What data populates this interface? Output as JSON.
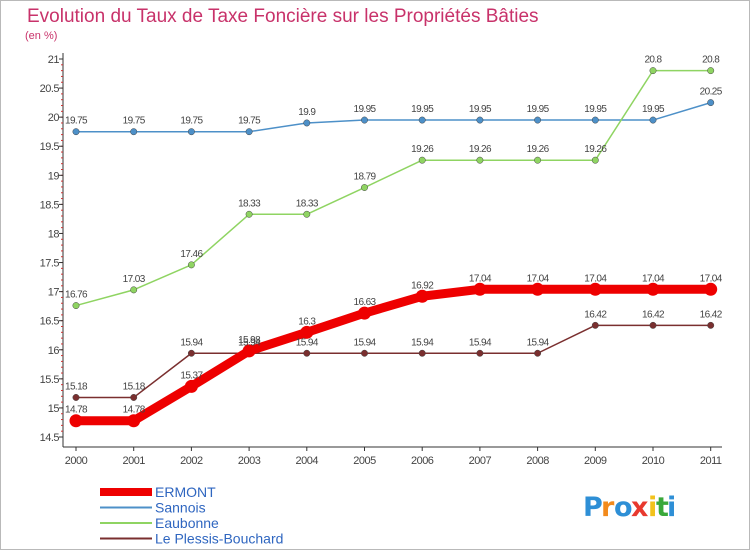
{
  "chart_data": {
    "type": "line",
    "title": "Evolution du Taux de Taxe Foncière sur les Propriétés Bâties",
    "unit_label": "(en %)",
    "xlabel": "",
    "ylabel": "",
    "categories": [
      "2000",
      "2001",
      "2002",
      "2003",
      "2004",
      "2005",
      "2006",
      "2007",
      "2008",
      "2009",
      "2010",
      "2011"
    ],
    "ylim": [
      14.5,
      21
    ],
    "yticks": [
      14.5,
      15,
      15.5,
      16,
      16.5,
      17,
      17.5,
      18,
      18.5,
      19,
      19.5,
      20,
      20.5,
      21
    ],
    "grid": false,
    "legend_position": "bottom-left",
    "series": [
      {
        "name": "Sannois",
        "color": "#4d90c8",
        "highlight": false,
        "values": [
          19.75,
          19.75,
          19.75,
          19.75,
          19.9,
          19.95,
          19.95,
          19.95,
          19.95,
          19.95,
          19.95,
          20.25
        ],
        "labels": [
          "19.75",
          "19.75",
          "19.75",
          "19.75",
          "19.9",
          "19.95",
          "19.95",
          "19.95",
          "19.95",
          "19.95",
          "19.95",
          "20.25"
        ]
      },
      {
        "name": "Eaubonne",
        "color": "#8fd462",
        "highlight": false,
        "values": [
          16.76,
          17.03,
          17.46,
          18.33,
          18.33,
          18.79,
          19.26,
          19.26,
          19.26,
          19.26,
          20.8,
          20.8
        ],
        "labels": [
          "16.76",
          "17.03",
          "17.46",
          "18.33",
          "18.33",
          "18.79",
          "19.26",
          "19.26",
          "19.26",
          "19.26",
          "20.8",
          "20.8"
        ]
      },
      {
        "name": "Le Plessis-Bouchard",
        "color": "#7a2f2f",
        "highlight": false,
        "values": [
          15.18,
          15.18,
          15.94,
          15.94,
          15.94,
          15.94,
          15.94,
          15.94,
          15.94,
          16.42,
          16.42,
          16.42
        ],
        "labels": [
          "15.18",
          "15.18",
          "15.94",
          "15.94",
          "15.94",
          "15.94",
          "15.94",
          "15.94",
          "15.94",
          "16.42",
          "16.42",
          "16.42"
        ]
      },
      {
        "name": "ERMONT",
        "color": "#ee0000",
        "highlight": true,
        "values": [
          14.78,
          14.78,
          15.37,
          15.98,
          16.3,
          16.63,
          16.92,
          17.04,
          17.04,
          17.04,
          17.04,
          17.04
        ],
        "labels": [
          "14.78",
          "14.78",
          "15.37",
          "15.98",
          "16.3",
          "16.63",
          "16.92",
          "17.04",
          "17.04",
          "17.04",
          "17.04",
          "17.04"
        ]
      }
    ],
    "legend_order": [
      "ERMONT",
      "Sannois",
      "Eaubonne",
      "Le Plessis-Bouchard"
    ]
  },
  "logo": {
    "letters": [
      "P",
      "r",
      "o",
      "x",
      "i",
      "t",
      "i"
    ],
    "colors": [
      "#2e8fd6",
      "#f28a1c",
      "#2e8fd6",
      "#e8392e",
      "#f2c21c",
      "#3aa83a",
      "#2e8fd6"
    ]
  }
}
